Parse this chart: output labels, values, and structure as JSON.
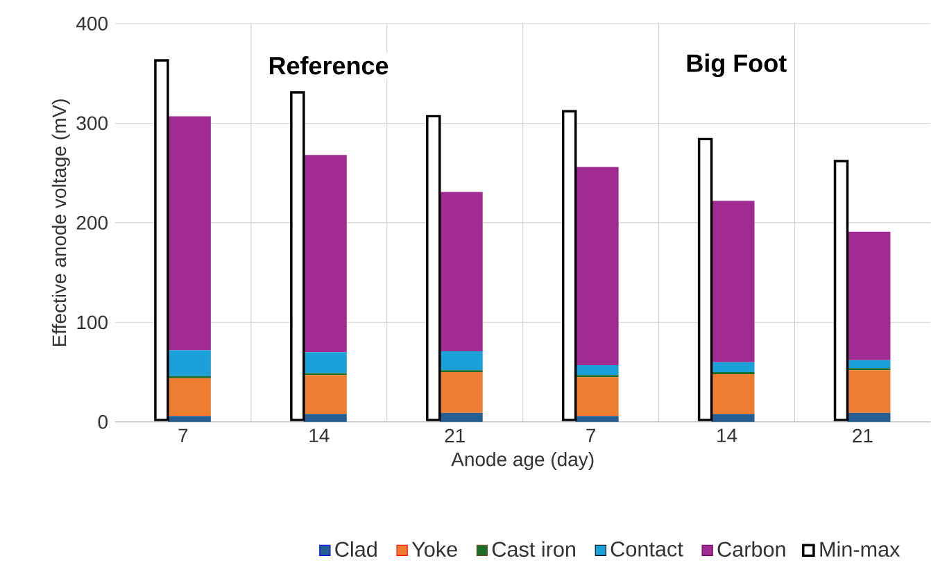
{
  "chart_data": [
    {
      "type": "bar",
      "stacked": true,
      "xlabel": "Anode age (day)",
      "ylabel": "Effective anode voltage (mV)",
      "categories": [
        "7",
        "14",
        "21",
        "7",
        "14",
        "21"
      ],
      "annotations": [
        "Reference",
        "Big Foot"
      ],
      "series": [
        {
          "name": "Clad",
          "color": "#255e91",
          "values": [
            6,
            8,
            9,
            6,
            8,
            9
          ]
        },
        {
          "name": "Yoke",
          "color": "#ed7d31",
          "values": [
            38,
            39,
            41,
            39,
            40,
            43
          ]
        },
        {
          "name": "Cast iron",
          "color": "#1e6e2a",
          "values": [
            2,
            2,
            2,
            2,
            2,
            2
          ]
        },
        {
          "name": "Contact",
          "color": "#1ba1d8",
          "values": [
            26,
            21,
            19,
            10,
            10,
            8
          ]
        },
        {
          "name": "Carbon",
          "color": "#a02b93",
          "values": [
            235,
            198,
            160,
            199,
            162,
            129
          ]
        }
      ],
      "ylim": [
        0,
        400
      ],
      "yticks": [
        0,
        100,
        200,
        300,
        400
      ],
      "grid": true,
      "legend": "bottom"
    },
    {
      "type": "bar",
      "categories": [
        "7",
        "14",
        "21",
        "7",
        "14",
        "21"
      ],
      "series": [
        {
          "name": "Min-max",
          "color": "#ffffff",
          "base": [
            2,
            2,
            2,
            2,
            2,
            2
          ],
          "values": [
            361,
            329,
            305,
            310,
            282,
            260
          ]
        }
      ],
      "ylim": [
        0,
        400
      ],
      "tick_labels": false,
      "legend": "bottom"
    }
  ]
}
